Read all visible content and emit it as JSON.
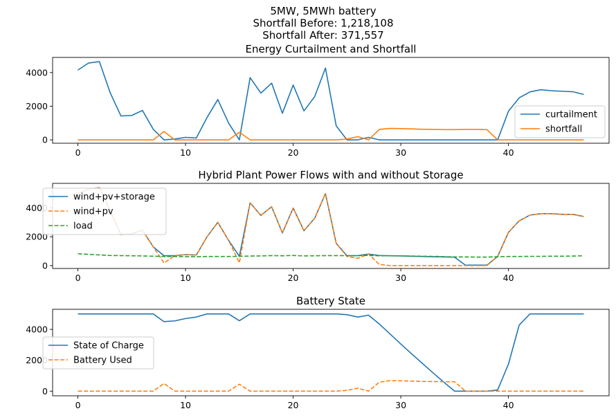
{
  "figure": {
    "title_lines": [
      "5MW, 5MWh battery",
      "Shortfall Before: 1,218,108",
      "Shortfall After: 371,557"
    ]
  },
  "chart_data": [
    {
      "type": "line",
      "title": "Energy Curtailment and Shortfall",
      "xlim": [
        -2.35,
        49.35
      ],
      "ylim": [
        -200,
        4900
      ],
      "xticks": [
        0,
        10,
        20,
        30,
        40
      ],
      "yticks": [
        0,
        2000,
        4000
      ],
      "legend": "lower-right",
      "x": [
        0,
        1,
        2,
        3,
        4,
        5,
        6,
        7,
        8,
        9,
        10,
        11,
        12,
        13,
        14,
        15,
        16,
        17,
        18,
        19,
        20,
        21,
        22,
        23,
        24,
        25,
        26,
        27,
        28,
        29,
        30,
        31,
        32,
        33,
        34,
        35,
        36,
        37,
        38,
        39,
        40,
        41,
        42,
        43,
        44,
        45,
        46,
        47
      ],
      "series": [
        {
          "name": "curtailment",
          "color": "#1f77b4",
          "dash": "solid",
          "values": [
            4150,
            4570,
            4650,
            2800,
            1420,
            1450,
            1750,
            630,
            0,
            50,
            150,
            110,
            1330,
            2400,
            1000,
            0,
            3700,
            2780,
            3370,
            1580,
            3260,
            1720,
            2570,
            4270,
            830,
            0,
            0,
            150,
            0,
            0,
            0,
            0,
            0,
            0,
            0,
            0,
            0,
            0,
            0,
            0,
            1700,
            2500,
            2850,
            2980,
            2920,
            2890,
            2860,
            2700
          ]
        },
        {
          "name": "shortfall",
          "color": "#ff7f0e",
          "dash": "solid",
          "values": [
            0,
            0,
            0,
            0,
            0,
            0,
            0,
            0,
            500,
            0,
            0,
            0,
            0,
            0,
            0,
            450,
            0,
            0,
            0,
            0,
            0,
            0,
            0,
            0,
            0,
            50,
            190,
            0,
            620,
            680,
            670,
            650,
            630,
            620,
            610,
            610,
            620,
            620,
            610,
            0,
            0,
            0,
            0,
            0,
            0,
            0,
            0,
            0
          ]
        }
      ]
    },
    {
      "type": "line",
      "title": "Hybrid Plant Power Flows with and without Storage",
      "xlim": [
        -2.35,
        49.35
      ],
      "ylim": [
        -200,
        5700
      ],
      "xticks": [
        0,
        10,
        20,
        30,
        40
      ],
      "yticks": [
        0,
        2000,
        4000
      ],
      "legend": "upper-left",
      "x": [
        0,
        1,
        2,
        3,
        4,
        5,
        6,
        7,
        8,
        9,
        10,
        11,
        12,
        13,
        14,
        15,
        16,
        17,
        18,
        19,
        20,
        21,
        22,
        23,
        24,
        25,
        26,
        27,
        28,
        29,
        30,
        31,
        32,
        33,
        34,
        35,
        36,
        37,
        38,
        39,
        40,
        41,
        42,
        43,
        44,
        45,
        46,
        47
      ],
      "series": [
        {
          "name": "wind+pv+storage",
          "color": "#1f77b4",
          "dash": "solid",
          "values": [
            5000,
            5300,
            5400,
            3800,
            2150,
            2200,
            2450,
            1300,
            680,
            690,
            760,
            730,
            2000,
            3000,
            1750,
            640,
            4350,
            3480,
            4080,
            2260,
            3990,
            2420,
            3280,
            4990,
            1540,
            680,
            690,
            800,
            700,
            680,
            670,
            650,
            630,
            610,
            600,
            580,
            30,
            30,
            30,
            640,
            2300,
            3100,
            3500,
            3600,
            3600,
            3550,
            3550,
            3400
          ]
        },
        {
          "name": "wind+pv",
          "color": "#ff7f0e",
          "dash": "dashed",
          "values": [
            5000,
            5300,
            5400,
            3800,
            2150,
            2200,
            2450,
            1300,
            180,
            690,
            760,
            730,
            2000,
            3000,
            1750,
            190,
            4350,
            3480,
            4080,
            2260,
            3990,
            2420,
            3280,
            4990,
            1540,
            630,
            500,
            800,
            80,
            0,
            0,
            0,
            0,
            0,
            0,
            0,
            0,
            0,
            0,
            640,
            2300,
            3100,
            3500,
            3600,
            3600,
            3550,
            3550,
            3400
          ]
        },
        {
          "name": "load",
          "color": "#2ca02c",
          "dash": "dashed",
          "values": [
            820,
            780,
            740,
            700,
            690,
            680,
            670,
            650,
            630,
            630,
            620,
            620,
            630,
            630,
            630,
            640,
            660,
            670,
            690,
            680,
            700,
            670,
            680,
            690,
            690,
            690,
            690,
            700,
            680,
            680,
            670,
            660,
            650,
            640,
            620,
            600,
            600,
            590,
            590,
            610,
            630,
            630,
            640,
            640,
            650,
            650,
            660,
            680
          ]
        }
      ]
    },
    {
      "type": "line",
      "title": "Battery State",
      "xlim": [
        -2.35,
        49.35
      ],
      "ylim": [
        -300,
        5300
      ],
      "xticks": [
        0,
        10,
        20,
        30,
        40
      ],
      "yticks": [
        0,
        2000,
        4000
      ],
      "legend": "center-left",
      "x": [
        0,
        1,
        2,
        3,
        4,
        5,
        6,
        7,
        8,
        9,
        10,
        11,
        12,
        13,
        14,
        15,
        16,
        17,
        18,
        19,
        20,
        21,
        22,
        23,
        24,
        25,
        26,
        27,
        28,
        29,
        30,
        31,
        32,
        33,
        34,
        35,
        36,
        37,
        38,
        39,
        40,
        41,
        42,
        43,
        44,
        45,
        46,
        47
      ],
      "series": [
        {
          "name": "State of Charge",
          "color": "#1f77b4",
          "dash": "solid",
          "values": [
            5000,
            5000,
            5000,
            5000,
            5000,
            5000,
            5000,
            5000,
            4500,
            4550,
            4700,
            4800,
            5000,
            5000,
            5000,
            4560,
            5000,
            5000,
            5000,
            5000,
            5000,
            5000,
            5000,
            5000,
            5000,
            4950,
            4800,
            4920,
            4350,
            3700,
            3050,
            2420,
            1800,
            1180,
            580,
            0,
            0,
            0,
            0,
            80,
            1750,
            4280,
            5000,
            5000,
            5000,
            5000,
            5000,
            5000
          ]
        },
        {
          "name": "Battery Used",
          "color": "#ff7f0e",
          "dash": "dashed",
          "values": [
            0,
            0,
            0,
            0,
            0,
            0,
            0,
            0,
            500,
            0,
            0,
            0,
            0,
            0,
            0,
            450,
            0,
            0,
            0,
            0,
            0,
            0,
            0,
            0,
            0,
            50,
            190,
            0,
            580,
            680,
            670,
            650,
            630,
            620,
            610,
            610,
            0,
            0,
            0,
            0,
            0,
            0,
            0,
            0,
            0,
            0,
            0,
            0
          ]
        }
      ]
    }
  ]
}
